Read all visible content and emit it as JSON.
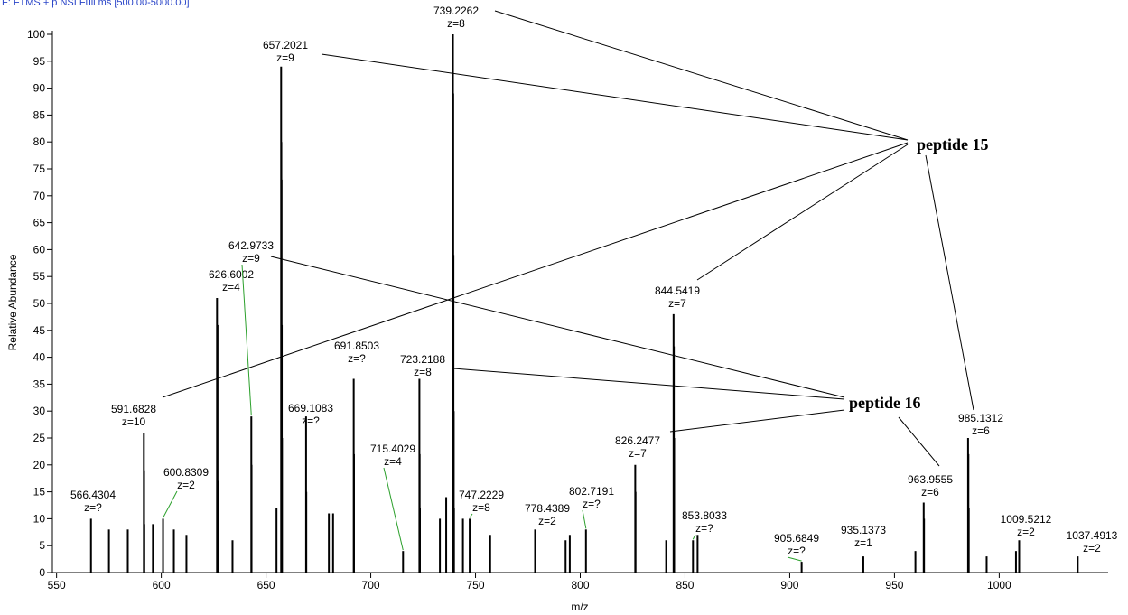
{
  "chart_data": {
    "type": "spectrum",
    "title": "F: FTMS + p NSI Full ms [500.00-5000.00]",
    "x_label": "m/z",
    "y_label": "Relative Abundance",
    "xlim": [
      548,
      1052
    ],
    "xticks": [
      550,
      600,
      650,
      700,
      750,
      800,
      850,
      900,
      950,
      1000
    ],
    "ylim": [
      0,
      100
    ],
    "yticks": [
      0,
      5,
      10,
      15,
      20,
      25,
      30,
      35,
      40,
      45,
      50,
      55,
      60,
      65,
      70,
      75,
      80,
      85,
      90,
      95,
      100
    ],
    "color": "#000000",
    "labeled_peaks": {
      "x": [
        566.4304,
        591.6828,
        600.8309,
        626.6002,
        642.9733,
        657.2021,
        669.1083,
        691.8503,
        715.4029,
        723.2188,
        739.2262,
        747.2229,
        778.4389,
        802.7191,
        826.2477,
        844.5419,
        853.8033,
        905.6849,
        935.1373,
        963.9555,
        985.1312,
        1009.5212,
        1037.4913
      ],
      "values": [
        10,
        26,
        10,
        51,
        29,
        94,
        29,
        36,
        4,
        36,
        100,
        10,
        8,
        8,
        20,
        48,
        6,
        2,
        3,
        13,
        25,
        6,
        3
      ],
      "charge": [
        "z=?",
        "z=10",
        "z=2",
        "z=4",
        "z=9",
        "z=9",
        "z=?",
        "z=?",
        "z=4",
        "z=8",
        "z=8",
        "z=8",
        "z=2",
        "z=?",
        "z=7",
        "z=7",
        "z=?",
        "z=?",
        "z=1",
        "z=6",
        "z=6",
        "z=2",
        "z=2"
      ]
    },
    "other_peaks": {
      "x": [
        575,
        584,
        591.78,
        591.88,
        596,
        606,
        612,
        626.85,
        627.1,
        634,
        643.08,
        655,
        657.31,
        657.42,
        657.53,
        657.64,
        669.22,
        680,
        682,
        691.99,
        723.34,
        723.47,
        733,
        736,
        739.35,
        739.47,
        739.6,
        739.72,
        744,
        757,
        793,
        795,
        826.39,
        841,
        844.68,
        844.83,
        856,
        960,
        964.12,
        985.3,
        985.47,
        994,
        1008
      ],
      "values": [
        8,
        8,
        19,
        9,
        9,
        8,
        7,
        46,
        17,
        6,
        20,
        12,
        80,
        73,
        46,
        25,
        15,
        11,
        11,
        22,
        22,
        12,
        10,
        14,
        89,
        59,
        30,
        12,
        10,
        7,
        6,
        7,
        15,
        6,
        42,
        25,
        7,
        4,
        10,
        22,
        12,
        3,
        4
      ]
    },
    "annotations": [
      "peptide 15",
      "peptide 16"
    ]
  }
}
